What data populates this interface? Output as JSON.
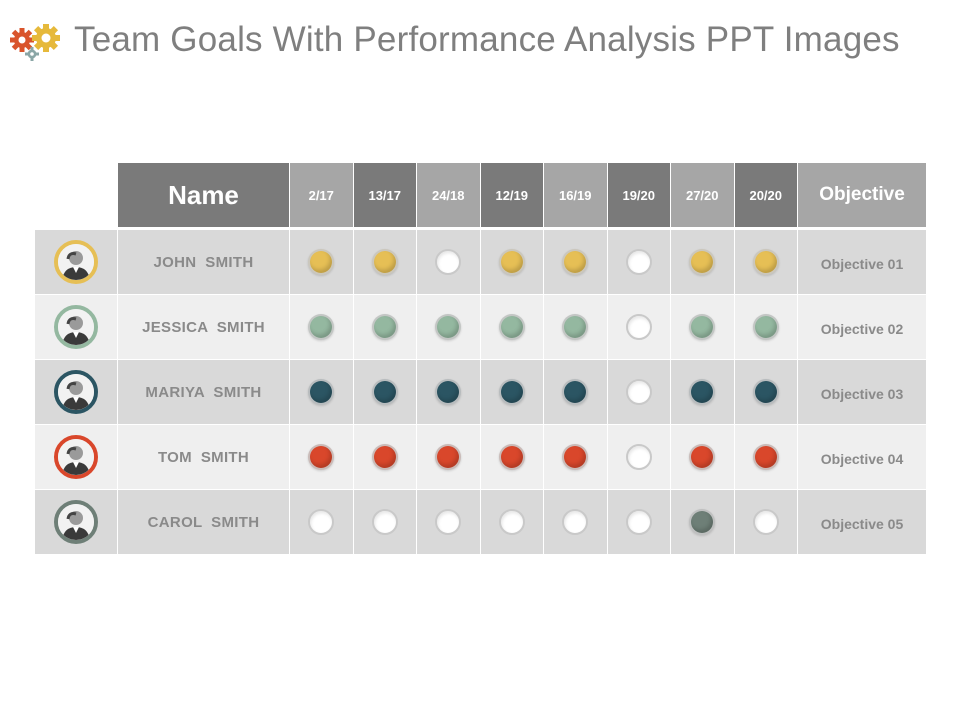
{
  "page": {
    "title": "Team Goals With Performance Analysis PPT Images"
  },
  "colors": {
    "gear_orange": "#d9542b",
    "gear_yellow": "#e6b93b",
    "gear_gray": "#8aa6a6",
    "header_dark": "#7a7a7a",
    "header_light": "#a6a6a6"
  },
  "table": {
    "name_header": "Name",
    "objective_header": "Objective",
    "date_columns": [
      {
        "label": "2/17",
        "shade": "light"
      },
      {
        "label": "13/17",
        "shade": "dark"
      },
      {
        "label": "24/18",
        "shade": "light"
      },
      {
        "label": "12/19",
        "shade": "dark"
      },
      {
        "label": "16/19",
        "shade": "light"
      },
      {
        "label": "19/20",
        "shade": "dark"
      },
      {
        "label": "27/20",
        "shade": "light"
      },
      {
        "label": "20/20",
        "shade": "dark"
      }
    ],
    "rows": [
      {
        "name": "JOHN  SMITH",
        "objective": "Objective 01",
        "color": "#e6bf55",
        "avatar_ring": "#e6bf55",
        "avatar_icon": "person-photo-icon",
        "marks": [
          1,
          1,
          0,
          1,
          1,
          0,
          1,
          1
        ]
      },
      {
        "name": "JESSICA  SMITH",
        "objective": "Objective 02",
        "color": "#94b8a0",
        "avatar_ring": "#94b8a0",
        "avatar_icon": "person-photo-icon",
        "marks": [
          1,
          1,
          1,
          1,
          1,
          0,
          1,
          1
        ]
      },
      {
        "name": "MARIYA  SMITH",
        "objective": "Objective 03",
        "color": "#2b5563",
        "avatar_ring": "#2b5563",
        "avatar_icon": "person-photo-icon",
        "marks": [
          1,
          1,
          1,
          1,
          1,
          0,
          1,
          1
        ]
      },
      {
        "name": "TOM  SMITH",
        "objective": "Objective 04",
        "color": "#d9472b",
        "avatar_ring": "#d9472b",
        "avatar_icon": "person-photo-icon",
        "marks": [
          1,
          1,
          1,
          1,
          1,
          0,
          1,
          1
        ]
      },
      {
        "name": "CAROL  SMITH",
        "objective": "Objective 05",
        "color": "#6e7f77",
        "avatar_ring": "#6e7f77",
        "avatar_icon": "person-photo-icon",
        "marks": [
          0,
          0,
          0,
          0,
          0,
          0,
          1,
          0
        ]
      }
    ]
  }
}
